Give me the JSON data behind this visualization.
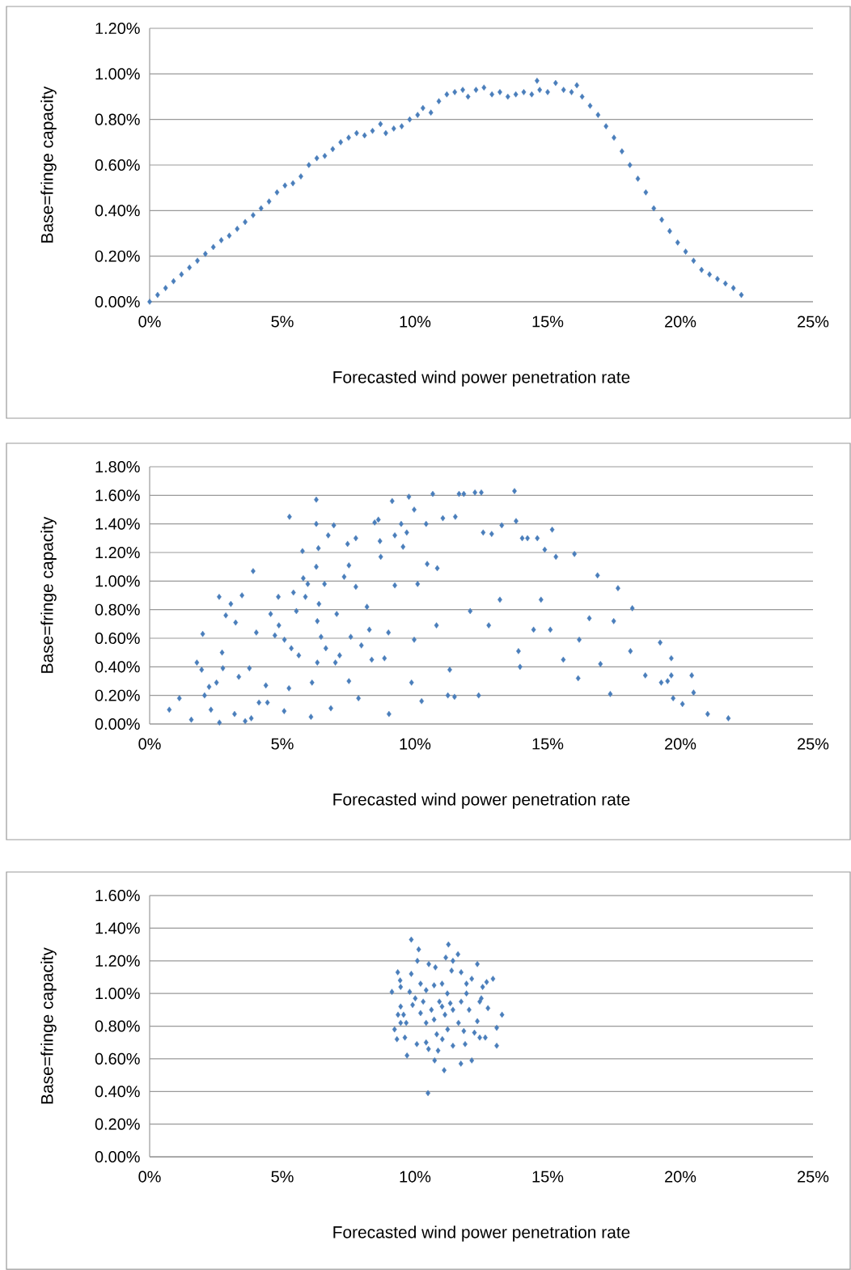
{
  "chart_data": [
    {
      "type": "scatter",
      "xlabel": "Forecasted wind power penetration rate",
      "ylabel": "Base=fringe capacity",
      "color": "#4a7ebb",
      "marker": "diamond",
      "grid": "y",
      "xlim": [
        0,
        25
      ],
      "ylim": [
        0,
        1.2
      ],
      "xticks": [
        {
          "value": 0,
          "label": "0%"
        },
        {
          "value": 5,
          "label": "5%"
        },
        {
          "value": 10,
          "label": "10%"
        },
        {
          "value": 15,
          "label": "15%"
        },
        {
          "value": 20,
          "label": "20%"
        },
        {
          "value": 25,
          "label": "25%"
        }
      ],
      "yticks": [
        {
          "value": 0,
          "label": "0.00%"
        },
        {
          "value": 0.2,
          "label": "0.20%"
        },
        {
          "value": 0.4,
          "label": "0.40%"
        },
        {
          "value": 0.6,
          "label": "0.60%"
        },
        {
          "value": 0.8,
          "label": "0.80%"
        },
        {
          "value": 1.0,
          "label": "1.00%"
        },
        {
          "value": 1.2,
          "label": "1.20%"
        }
      ],
      "x": [
        0,
        0.3,
        0.6,
        0.9,
        1.2,
        1.5,
        1.8,
        2.1,
        2.4,
        2.7,
        3.0,
        3.3,
        3.6,
        3.9,
        4.2,
        4.5,
        4.8,
        5.1,
        5.4,
        5.7,
        6.0,
        6.3,
        6.6,
        6.9,
        7.2,
        7.5,
        7.8,
        8.1,
        8.4,
        8.7,
        8.9,
        9.2,
        9.5,
        9.8,
        10.1,
        10.3,
        10.6,
        10.9,
        11.2,
        11.5,
        11.8,
        12.0,
        12.3,
        12.6,
        12.9,
        13.2,
        13.5,
        13.8,
        14.1,
        14.4,
        14.7,
        14.6,
        15.0,
        15.3,
        15.6,
        15.9,
        16.1,
        16.3,
        16.6,
        16.9,
        17.2,
        17.5,
        17.8,
        18.1,
        18.4,
        18.7,
        19.0,
        19.3,
        19.6,
        19.9,
        20.2,
        20.5,
        20.8,
        21.1,
        21.4,
        21.7,
        22.0,
        22.3
      ],
      "values": [
        0,
        0.03,
        0.06,
        0.09,
        0.12,
        0.15,
        0.18,
        0.21,
        0.24,
        0.27,
        0.29,
        0.32,
        0.35,
        0.38,
        0.41,
        0.44,
        0.48,
        0.51,
        0.52,
        0.55,
        0.6,
        0.63,
        0.64,
        0.67,
        0.7,
        0.72,
        0.74,
        0.73,
        0.75,
        0.78,
        0.74,
        0.76,
        0.77,
        0.8,
        0.82,
        0.85,
        0.83,
        0.88,
        0.91,
        0.92,
        0.93,
        0.9,
        0.93,
        0.94,
        0.91,
        0.92,
        0.9,
        0.91,
        0.92,
        0.91,
        0.93,
        0.97,
        0.92,
        0.96,
        0.93,
        0.92,
        0.95,
        0.9,
        0.86,
        0.82,
        0.77,
        0.72,
        0.66,
        0.6,
        0.54,
        0.48,
        0.41,
        0.36,
        0.31,
        0.26,
        0.22,
        0.18,
        0.14,
        0.12,
        0.1,
        0.08,
        0.06,
        0.03
      ]
    },
    {
      "type": "scatter",
      "xlabel": "Forecasted wind power penetration rate",
      "ylabel": "Base=fringe capacity",
      "color": "#4a7ebb",
      "marker": "diamond",
      "grid": "y",
      "xlim": [
        0,
        25
      ],
      "ylim": [
        0,
        1.8
      ],
      "xticks": [
        {
          "value": 0,
          "label": "0%"
        },
        {
          "value": 5,
          "label": "5%"
        },
        {
          "value": 10,
          "label": "10%"
        },
        {
          "value": 15,
          "label": "15%"
        },
        {
          "value": 20,
          "label": "20%"
        },
        {
          "value": 25,
          "label": "25%"
        }
      ],
      "yticks": [
        {
          "value": 0,
          "label": "0.00%"
        },
        {
          "value": 0.2,
          "label": "0.20%"
        },
        {
          "value": 0.4,
          "label": "0.40%"
        },
        {
          "value": 0.6,
          "label": "0.60%"
        },
        {
          "value": 0.8,
          "label": "0.80%"
        },
        {
          "value": 1.0,
          "label": "1.00%"
        },
        {
          "value": 1.2,
          "label": "1.20%"
        },
        {
          "value": 1.4,
          "label": "1.40%"
        },
        {
          "value": 1.6,
          "label": "1.60%"
        },
        {
          "value": 1.8,
          "label": "1.80%"
        }
      ],
      "x": [
        0.74,
        1.12,
        1.57,
        1.78,
        1.96,
        2.0,
        2.07,
        2.24,
        2.31,
        2.52,
        2.62,
        2.63,
        2.73,
        2.76,
        2.87,
        3.06,
        3.2,
        3.24,
        3.36,
        3.48,
        3.6,
        3.76,
        3.83,
        3.9,
        4.02,
        4.12,
        4.38,
        4.44,
        4.56,
        4.72,
        4.85,
        4.87,
        5.07,
        5.08,
        5.25,
        5.27,
        5.34,
        5.42,
        5.53,
        5.62,
        5.76,
        5.79,
        5.87,
        5.96,
        6.08,
        6.12,
        6.28,
        6.28,
        6.28,
        6.32,
        6.36,
        6.38,
        6.46,
        6.59,
        6.64,
        6.73,
        6.83,
        6.94,
        7.0,
        7.05,
        7.16,
        7.33,
        7.46,
        7.51,
        7.51,
        7.77,
        7.77,
        7.87,
        7.98,
        8.19,
        8.37,
        8.48,
        8.62,
        8.68,
        8.71,
        8.85,
        9.02,
        9.14,
        9.24,
        9.24,
        9.48,
        9.55,
        9.69,
        9.77,
        9.87,
        9.97,
        10.1,
        10.25,
        10.42,
        10.46,
        10.67,
        10.84,
        11.05,
        11.24,
        11.49,
        11.52,
        11.66,
        11.84,
        12.26,
        12.5,
        12.4,
        12.57,
        12.89,
        13.27,
        13.75,
        13.81,
        14.04,
        14.24,
        14.61,
        15.17,
        13.9,
        13.96,
        14.89,
        15.31,
        16.01,
        16.88,
        17.36,
        17.65,
        18.19,
        18.68,
        19.24,
        19.66,
        19.66,
        19.28,
        19.52,
        19.73,
        20.08,
        20.43,
        20.5,
        21.03,
        21.81,
        16.15,
        16.19,
        16.99,
        15.1,
        15.59,
        13.2,
        12.78,
        12.08,
        11.31,
        10.81,
        9.97,
        9.0,
        8.28,
        7.58,
        6.32,
        18.12,
        17.49,
        16.57,
        14.75,
        14.47
      ],
      "values": [
        0.1,
        0.18,
        0.03,
        0.43,
        0.38,
        0.63,
        0.2,
        0.26,
        0.1,
        0.29,
        0.89,
        0.01,
        0.5,
        0.39,
        0.76,
        0.84,
        0.07,
        0.71,
        0.33,
        0.9,
        0.02,
        0.39,
        0.04,
        1.07,
        0.64,
        0.15,
        0.27,
        0.15,
        0.77,
        0.62,
        0.89,
        0.69,
        0.09,
        0.59,
        0.25,
        1.45,
        0.53,
        0.92,
        0.79,
        0.48,
        1.21,
        1.02,
        0.89,
        0.98,
        0.05,
        0.29,
        1.57,
        1.4,
        1.1,
        0.72,
        1.23,
        0.84,
        0.61,
        0.98,
        0.53,
        1.32,
        0.11,
        1.39,
        0.43,
        0.77,
        0.48,
        1.03,
        1.26,
        1.11,
        0.3,
        1.3,
        0.96,
        0.18,
        0.55,
        0.82,
        0.45,
        1.41,
        1.43,
        1.28,
        1.17,
        0.46,
        0.07,
        1.56,
        1.32,
        0.97,
        1.4,
        1.24,
        1.34,
        1.59,
        0.29,
        1.5,
        0.98,
        0.16,
        1.4,
        1.12,
        1.61,
        1.09,
        1.44,
        0.2,
        0.19,
        1.45,
        1.61,
        1.61,
        1.62,
        1.62,
        0.2,
        1.34,
        1.33,
        1.39,
        1.63,
        1.42,
        1.3,
        1.3,
        1.3,
        1.36,
        0.51,
        0.4,
        1.22,
        1.17,
        1.19,
        1.04,
        0.21,
        0.95,
        0.81,
        0.34,
        0.57,
        0.46,
        0.34,
        0.29,
        0.3,
        0.18,
        0.14,
        0.34,
        0.22,
        0.07,
        0.04,
        0.32,
        0.59,
        0.42,
        0.66,
        0.45,
        0.87,
        0.69,
        0.79,
        0.38,
        0.69,
        0.59,
        0.64,
        0.66,
        0.61,
        0.43,
        0.51,
        0.72,
        0.74,
        0.87,
        0.66
      ]
    },
    {
      "type": "scatter",
      "xlabel": "Forecasted wind power penetration rate",
      "ylabel": "Base=fringe capacity",
      "color": "#4a7ebb",
      "marker": "diamond",
      "grid": "y",
      "xlim": [
        0,
        25
      ],
      "ylim": [
        0,
        1.6
      ],
      "xticks": [
        {
          "value": 0,
          "label": "0%"
        },
        {
          "value": 5,
          "label": "5%"
        },
        {
          "value": 10,
          "label": "10%"
        },
        {
          "value": 15,
          "label": "15%"
        },
        {
          "value": 20,
          "label": "20%"
        },
        {
          "value": 25,
          "label": "25%"
        }
      ],
      "yticks": [
        {
          "value": 0,
          "label": "0.00%"
        },
        {
          "value": 0.2,
          "label": "0.20%"
        },
        {
          "value": 0.4,
          "label": "0.40%"
        },
        {
          "value": 0.6,
          "label": "0.60%"
        },
        {
          "value": 0.8,
          "label": "0.80%"
        },
        {
          "value": 1.0,
          "label": "1.00%"
        },
        {
          "value": 1.2,
          "label": "1.20%"
        },
        {
          "value": 1.4,
          "label": "1.40%"
        },
        {
          "value": 1.6,
          "label": "1.60%"
        }
      ],
      "x": [
        9.86,
        10.49,
        11.1,
        11.26,
        10.14,
        11.62,
        12.35,
        9.35,
        9.13,
        12.94,
        13.28,
        13.08,
        13.08,
        9.23,
        9.32,
        9.7,
        10.74,
        11.73,
        12.14,
        10.51,
        9.44,
        9.46,
        9.86,
        10.09,
        10.52,
        10.77,
        11.16,
        11.43,
        11.38,
        11.74,
        12.14,
        12.7,
        12.55,
        12.5,
        12.75,
        9.46,
        9.36,
        9.57,
        9.46,
        9.67,
        9.62,
        10.07,
        10.42,
        10.87,
        11.43,
        11.89,
        12.44,
        12.65,
        12.24,
        10.01,
        10.42,
        10.72,
        11.02,
        11.22,
        10.92,
        10.62,
        11.13,
        11.43,
        11.74,
        11.94,
        12.04,
        11.64,
        11.23,
        10.82,
        10.42,
        10.21,
        10.31,
        9.91,
        11.03,
        11.84,
        12.35,
        12.44,
        11.94,
        10.21,
        9.8,
        10.72,
        11.33,
        11.02
      ],
      "values": [
        1.33,
        0.39,
        0.53,
        1.3,
        1.27,
        1.24,
        1.18,
        1.13,
        1.01,
        1.09,
        0.87,
        0.79,
        0.68,
        0.78,
        0.72,
        0.62,
        0.59,
        0.57,
        0.59,
        0.66,
        1.08,
        1.04,
        1.12,
        1.2,
        1.18,
        1.16,
        1.22,
        1.2,
        1.14,
        1.13,
        1.09,
        1.07,
        1.04,
        0.97,
        0.91,
        0.92,
        0.87,
        0.87,
        0.82,
        0.82,
        0.73,
        0.69,
        0.7,
        0.65,
        0.68,
        0.69,
        0.73,
        0.73,
        0.76,
        0.97,
        1.02,
        1.05,
        1.06,
        1.0,
        0.95,
        0.9,
        0.87,
        0.9,
        0.95,
        1.0,
        0.9,
        0.82,
        0.78,
        0.75,
        0.82,
        0.88,
        0.95,
        0.93,
        0.72,
        0.77,
        0.83,
        0.95,
        1.06,
        1.06,
        1.01,
        0.84,
        0.94,
        0.92
      ]
    }
  ]
}
